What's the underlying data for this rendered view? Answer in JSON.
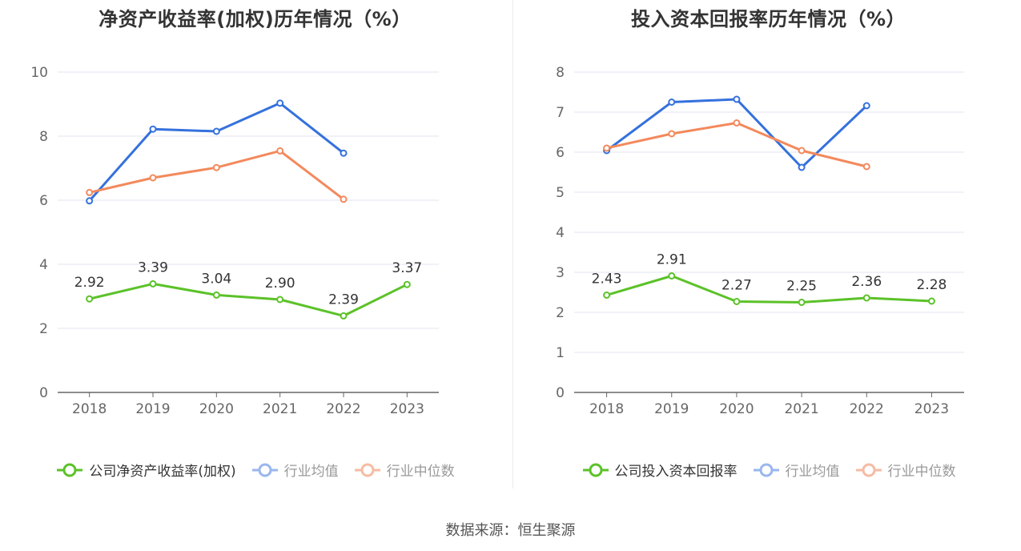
{
  "source": "数据来源：恒生聚源",
  "colors": {
    "company": "#5bc228",
    "avg": "#3571dd",
    "median": "#f3895c",
    "axis": "#666666",
    "grid": "#e3e6f0"
  },
  "chart_data": [
    {
      "type": "line",
      "title": "净资产收益率(加权)历年情况（%）",
      "categories": [
        "2018",
        "2019",
        "2020",
        "2021",
        "2022",
        "2023"
      ],
      "ylim": [
        0,
        10
      ],
      "yticks": [
        0,
        2,
        4,
        6,
        8,
        10
      ],
      "series": [
        {
          "key": "company",
          "name": "公司净资产收益率(加权)",
          "values": [
            2.92,
            3.39,
            3.04,
            2.9,
            2.39,
            3.37
          ],
          "labels": [
            "2.92",
            "3.39",
            "3.04",
            "2.90",
            "2.39",
            "3.37"
          ]
        },
        {
          "key": "avg",
          "name": "行业均值",
          "values": [
            5.98,
            8.22,
            8.15,
            9.03,
            7.47,
            null
          ]
        },
        {
          "key": "median",
          "name": "行业中位数",
          "values": [
            6.24,
            6.7,
            7.02,
            7.54,
            6.03,
            null
          ]
        }
      ]
    },
    {
      "type": "line",
      "title": "投入资本回报率历年情况（%）",
      "categories": [
        "2018",
        "2019",
        "2020",
        "2021",
        "2022",
        "2023"
      ],
      "ylim": [
        0,
        8
      ],
      "yticks": [
        0,
        1,
        2,
        3,
        4,
        5,
        6,
        7,
        8
      ],
      "series": [
        {
          "key": "company",
          "name": "公司投入资本回报率",
          "values": [
            2.43,
            2.91,
            2.27,
            2.25,
            2.36,
            2.28
          ],
          "labels": [
            "2.43",
            "2.91",
            "2.27",
            "2.25",
            "2.36",
            "2.28"
          ]
        },
        {
          "key": "avg",
          "name": "行业均值",
          "values": [
            6.04,
            7.25,
            7.32,
            5.62,
            7.16,
            null
          ]
        },
        {
          "key": "median",
          "name": "行业中位数",
          "values": [
            6.1,
            6.46,
            6.73,
            6.04,
            5.64,
            null
          ]
        }
      ]
    }
  ]
}
